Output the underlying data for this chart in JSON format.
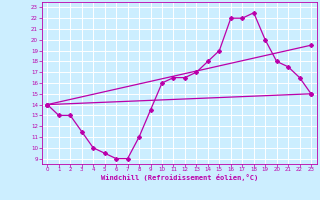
{
  "xlabel": "Windchill (Refroidissement éolien,°C)",
  "background_color": "#cceeff",
  "grid_color": "#ffffff",
  "line_color": "#bb00aa",
  "xlim": [
    -0.5,
    23.5
  ],
  "ylim": [
    8.5,
    23.5
  ],
  "xticks": [
    0,
    1,
    2,
    3,
    4,
    5,
    6,
    7,
    8,
    9,
    10,
    11,
    12,
    13,
    14,
    15,
    16,
    17,
    18,
    19,
    20,
    21,
    22,
    23
  ],
  "yticks": [
    9,
    10,
    11,
    12,
    13,
    14,
    15,
    16,
    17,
    18,
    19,
    20,
    21,
    22,
    23
  ],
  "line1_x": [
    0,
    1,
    2,
    3,
    4,
    5,
    6,
    7,
    8,
    9,
    10,
    11,
    12,
    13,
    14,
    15,
    16,
    17,
    18,
    19,
    20,
    21,
    22,
    23
  ],
  "line1_y": [
    14,
    13,
    13,
    11.5,
    10,
    9.5,
    9,
    9,
    11,
    13.5,
    16,
    16.5,
    16.5,
    17,
    18,
    19,
    22,
    22,
    22.5,
    20,
    18,
    17.5,
    16.5,
    15
  ],
  "line2_x": [
    0,
    23
  ],
  "line2_y": [
    14,
    15
  ],
  "line3_x": [
    0,
    23
  ],
  "line3_y": [
    14,
    19.5
  ]
}
